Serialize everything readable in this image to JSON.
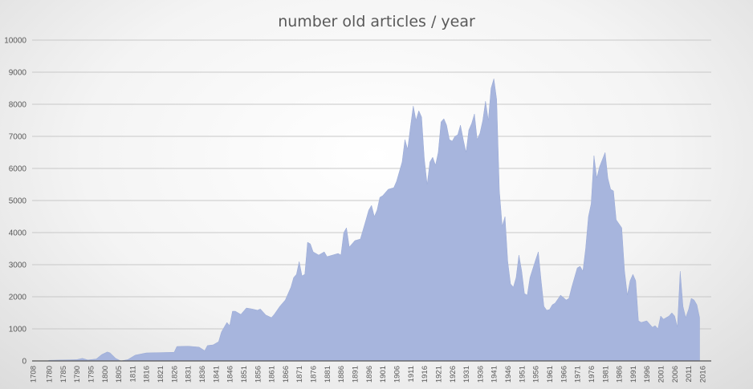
{
  "chart_data": {
    "type": "area",
    "title": "number old articles / year",
    "xlabel": "",
    "ylabel": "",
    "ylim": [
      0,
      10000
    ],
    "yticks": [
      0,
      1000,
      2000,
      3000,
      4000,
      5000,
      6000,
      7000,
      8000,
      9000,
      10000
    ],
    "grid": true,
    "legend": "none",
    "fill_color": "#a7b5dd",
    "xticks": [
      "1708",
      "1780",
      "1785",
      "1790",
      "1795",
      "1800",
      "1805",
      "1811",
      "1816",
      "1821",
      "1826",
      "1831",
      "1836",
      "1841",
      "1846",
      "1851",
      "1856",
      "1861",
      "1866",
      "1871",
      "1876",
      "1881",
      "1886",
      "1891",
      "1896",
      "1901",
      "1906",
      "1911",
      "1916",
      "1921",
      "1926",
      "1931",
      "1936",
      "1941",
      "1946",
      "1951",
      "1956",
      "1961",
      "1966",
      "1971",
      "1976",
      "1981",
      "1986",
      "1991",
      "1996",
      "2001",
      "2006",
      "2011",
      "2016"
    ],
    "series": [
      {
        "values": [
          [
            1708,
            0
          ],
          [
            1775,
            0
          ],
          [
            1780,
            20
          ],
          [
            1785,
            30
          ],
          [
            1790,
            40
          ],
          [
            1792,
            80
          ],
          [
            1794,
            30
          ],
          [
            1797,
            60
          ],
          [
            1799,
            200
          ],
          [
            1801,
            280
          ],
          [
            1802,
            250
          ],
          [
            1804,
            80
          ],
          [
            1806,
            0
          ],
          [
            1809,
            40
          ],
          [
            1812,
            180
          ],
          [
            1816,
            250
          ],
          [
            1821,
            260
          ],
          [
            1826,
            270
          ],
          [
            1827,
            450
          ],
          [
            1831,
            460
          ],
          [
            1835,
            430
          ],
          [
            1837,
            320
          ],
          [
            1838,
            480
          ],
          [
            1840,
            500
          ],
          [
            1842,
            600
          ],
          [
            1843,
            900
          ],
          [
            1844,
            1050
          ],
          [
            1845,
            1200
          ],
          [
            1846,
            1100
          ],
          [
            1847,
            1550
          ],
          [
            1848,
            1550
          ],
          [
            1850,
            1450
          ],
          [
            1852,
            1650
          ],
          [
            1854,
            1620
          ],
          [
            1856,
            1580
          ],
          [
            1857,
            1620
          ],
          [
            1859,
            1430
          ],
          [
            1861,
            1350
          ],
          [
            1862,
            1450
          ],
          [
            1864,
            1700
          ],
          [
            1866,
            1900
          ],
          [
            1868,
            2300
          ],
          [
            1869,
            2600
          ],
          [
            1870,
            2700
          ],
          [
            1871,
            3100
          ],
          [
            1872,
            2650
          ],
          [
            1873,
            2700
          ],
          [
            1874,
            3700
          ],
          [
            1875,
            3650
          ],
          [
            1876,
            3400
          ],
          [
            1878,
            3300
          ],
          [
            1880,
            3400
          ],
          [
            1881,
            3250
          ],
          [
            1883,
            3300
          ],
          [
            1885,
            3350
          ],
          [
            1886,
            3300
          ],
          [
            1887,
            4000
          ],
          [
            1888,
            4150
          ],
          [
            1889,
            3550
          ],
          [
            1891,
            3750
          ],
          [
            1893,
            3800
          ],
          [
            1895,
            4400
          ],
          [
            1896,
            4700
          ],
          [
            1897,
            4850
          ],
          [
            1898,
            4500
          ],
          [
            1899,
            4700
          ],
          [
            1900,
            5100
          ],
          [
            1901,
            5150
          ],
          [
            1903,
            5350
          ],
          [
            1905,
            5400
          ],
          [
            1906,
            5600
          ],
          [
            1908,
            6200
          ],
          [
            1909,
            6900
          ],
          [
            1910,
            6600
          ],
          [
            1911,
            7300
          ],
          [
            1912,
            7950
          ],
          [
            1913,
            7500
          ],
          [
            1914,
            7800
          ],
          [
            1915,
            7600
          ],
          [
            1916,
            6300
          ],
          [
            1917,
            5500
          ],
          [
            1918,
            6200
          ],
          [
            1919,
            6350
          ],
          [
            1920,
            6100
          ],
          [
            1921,
            6500
          ],
          [
            1922,
            7450
          ],
          [
            1923,
            7550
          ],
          [
            1924,
            7350
          ],
          [
            1925,
            6900
          ],
          [
            1926,
            6850
          ],
          [
            1927,
            7000
          ],
          [
            1928,
            7050
          ],
          [
            1929,
            7350
          ],
          [
            1930,
            6900
          ],
          [
            1931,
            6500
          ],
          [
            1932,
            7200
          ],
          [
            1933,
            7400
          ],
          [
            1934,
            7700
          ],
          [
            1935,
            6900
          ],
          [
            1936,
            7100
          ],
          [
            1937,
            7500
          ],
          [
            1938,
            8100
          ],
          [
            1939,
            7500
          ],
          [
            1940,
            8500
          ],
          [
            1941,
            8800
          ],
          [
            1942,
            8150
          ],
          [
            1943,
            5300
          ],
          [
            1944,
            4200
          ],
          [
            1945,
            4500
          ],
          [
            1946,
            3100
          ],
          [
            1947,
            2400
          ],
          [
            1948,
            2300
          ],
          [
            1949,
            2600
          ],
          [
            1950,
            3300
          ],
          [
            1951,
            2800
          ],
          [
            1952,
            2100
          ],
          [
            1953,
            2050
          ],
          [
            1954,
            2600
          ],
          [
            1956,
            3150
          ],
          [
            1957,
            3400
          ],
          [
            1958,
            2500
          ],
          [
            1959,
            1700
          ],
          [
            1960,
            1580
          ],
          [
            1961,
            1600
          ],
          [
            1962,
            1750
          ],
          [
            1963,
            1800
          ],
          [
            1965,
            2050
          ],
          [
            1967,
            1900
          ],
          [
            1968,
            1950
          ],
          [
            1969,
            2300
          ],
          [
            1971,
            2900
          ],
          [
            1972,
            2950
          ],
          [
            1973,
            2800
          ],
          [
            1974,
            3500
          ],
          [
            1975,
            4500
          ],
          [
            1976,
            4900
          ],
          [
            1977,
            6400
          ],
          [
            1978,
            5700
          ],
          [
            1979,
            6050
          ],
          [
            1981,
            6500
          ],
          [
            1982,
            5700
          ],
          [
            1983,
            5350
          ],
          [
            1984,
            5300
          ],
          [
            1985,
            4400
          ],
          [
            1987,
            4150
          ],
          [
            1988,
            2800
          ],
          [
            1989,
            2050
          ],
          [
            1990,
            2500
          ],
          [
            1991,
            2700
          ],
          [
            1992,
            2500
          ],
          [
            1993,
            1250
          ],
          [
            1994,
            1200
          ],
          [
            1996,
            1250
          ],
          [
            1998,
            1050
          ],
          [
            1999,
            1100
          ],
          [
            2000,
            1000
          ],
          [
            2001,
            1400
          ],
          [
            2002,
            1300
          ],
          [
            2004,
            1400
          ],
          [
            2005,
            1500
          ],
          [
            2006,
            1400
          ],
          [
            2007,
            1050
          ],
          [
            2008,
            2800
          ],
          [
            2009,
            1700
          ],
          [
            2010,
            1350
          ],
          [
            2011,
            1600
          ],
          [
            2012,
            1950
          ],
          [
            2013,
            1900
          ],
          [
            2014,
            1750
          ],
          [
            2015,
            1350
          ]
        ]
      }
    ]
  }
}
